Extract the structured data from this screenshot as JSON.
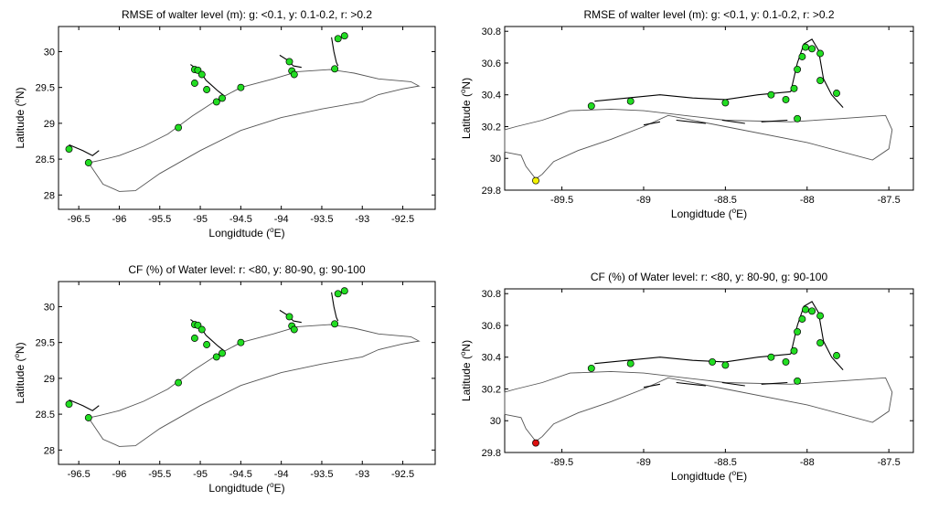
{
  "colors": {
    "g": "#22dd22",
    "y": "#f2f200",
    "r": "#dd1111"
  },
  "chart_data": [
    {
      "type": "scatter",
      "title": "RMSE of walter level (m):  g: <0.1, y: 0.1-0.2, r: >0.2",
      "xlabel_pre": "Longidtude (",
      "xlabel_sup": "o",
      "xlabel_post": "E)",
      "ylabel_pre": "Latitude (",
      "ylabel_sup": "o",
      "ylabel_post": "N)",
      "xlim": [
        -96.75,
        -92.1
      ],
      "ylim": [
        27.8,
        30.35
      ],
      "xticks": [
        -96.5,
        -96,
        -95.5,
        -95,
        -94.5,
        -94,
        -93.5,
        -93,
        -92.5
      ],
      "yticks": [
        28,
        28.5,
        29,
        29.5,
        30
      ],
      "coast": [
        [
          -96.35,
          28.4
        ],
        [
          -96.2,
          28.15
        ],
        [
          -96.0,
          28.05
        ],
        [
          -95.8,
          28.06
        ],
        [
          -95.5,
          28.3
        ],
        [
          -95.0,
          28.62
        ],
        [
          -94.5,
          28.9
        ],
        [
          -94.0,
          29.08
        ],
        [
          -93.5,
          29.2
        ],
        [
          -93.0,
          29.3
        ],
        [
          -92.8,
          29.4
        ],
        [
          -92.5,
          29.48
        ],
        [
          -92.3,
          29.52
        ],
        [
          -92.4,
          29.58
        ],
        [
          -92.8,
          29.62
        ],
        [
          -93.1,
          29.7
        ],
        [
          -93.4,
          29.75
        ],
        [
          -93.8,
          29.72
        ],
        [
          -94.1,
          29.62
        ],
        [
          -94.5,
          29.5
        ],
        [
          -94.8,
          29.32
        ],
        [
          -95.1,
          29.1
        ],
        [
          -95.4,
          28.85
        ],
        [
          -95.7,
          28.68
        ],
        [
          -96.0,
          28.55
        ],
        [
          -96.25,
          28.48
        ],
        [
          -96.38,
          28.45
        ]
      ],
      "points": [
        {
          "lon": -96.62,
          "lat": 28.64,
          "c": "g"
        },
        {
          "lon": -96.38,
          "lat": 28.45,
          "c": "g"
        },
        {
          "lon": -95.27,
          "lat": 28.94,
          "c": "g"
        },
        {
          "lon": -95.07,
          "lat": 29.75,
          "c": "g"
        },
        {
          "lon": -95.03,
          "lat": 29.74,
          "c": "g"
        },
        {
          "lon": -94.98,
          "lat": 29.68,
          "c": "g"
        },
        {
          "lon": -95.07,
          "lat": 29.56,
          "c": "g"
        },
        {
          "lon": -94.92,
          "lat": 29.47,
          "c": "g"
        },
        {
          "lon": -94.8,
          "lat": 29.3,
          "c": "g"
        },
        {
          "lon": -94.73,
          "lat": 29.35,
          "c": "g"
        },
        {
          "lon": -94.5,
          "lat": 29.5,
          "c": "g"
        },
        {
          "lon": -93.9,
          "lat": 29.86,
          "c": "g"
        },
        {
          "lon": -93.87,
          "lat": 29.73,
          "c": "g"
        },
        {
          "lon": -93.84,
          "lat": 29.68,
          "c": "g"
        },
        {
          "lon": -93.34,
          "lat": 29.76,
          "c": "g"
        },
        {
          "lon": -93.3,
          "lat": 30.18,
          "c": "g"
        },
        {
          "lon": -93.22,
          "lat": 30.22,
          "c": "g"
        }
      ]
    },
    {
      "type": "scatter",
      "title": "RMSE of walter level (m):  g: <0.1, y: 0.1-0.2, r: >0.2",
      "xlabel_pre": "Longidtude (",
      "xlabel_sup": "o",
      "xlabel_post": "E)",
      "ylabel_pre": "Latitude (",
      "ylabel_sup": "o",
      "ylabel_post": "N)",
      "xlim": [
        -89.85,
        -87.35
      ],
      "ylim": [
        29.8,
        30.83
      ],
      "xticks": [
        -89.5,
        -89,
        -88.5,
        -88,
        -87.5
      ],
      "yticks": [
        29.8,
        30,
        30.2,
        30.4,
        30.6,
        30.8
      ],
      "coast": [
        [
          -89.85,
          30.04
        ],
        [
          -89.75,
          30.02
        ],
        [
          -89.72,
          29.95
        ],
        [
          -89.66,
          29.87
        ],
        [
          -89.62,
          29.9
        ],
        [
          -89.55,
          29.98
        ],
        [
          -89.4,
          30.05
        ],
        [
          -89.2,
          30.12
        ],
        [
          -89.0,
          30.2
        ],
        [
          -88.85,
          30.27
        ],
        [
          -88.5,
          30.2
        ],
        [
          -88.0,
          30.1
        ],
        [
          -87.6,
          29.99
        ],
        [
          -87.5,
          30.06
        ],
        [
          -87.48,
          30.18
        ],
        [
          -87.52,
          30.27
        ],
        [
          -87.8,
          30.25
        ],
        [
          -88.1,
          30.23
        ],
        [
          -88.5,
          30.24
        ],
        [
          -88.75,
          30.27
        ],
        [
          -89.0,
          30.3
        ],
        [
          -89.2,
          30.31
        ],
        [
          -89.45,
          30.3
        ],
        [
          -89.62,
          30.24
        ],
        [
          -89.78,
          30.2
        ],
        [
          -89.85,
          30.18
        ]
      ],
      "points": [
        {
          "lon": -89.66,
          "lat": 29.86,
          "c": "y"
        },
        {
          "lon": -89.32,
          "lat": 30.33,
          "c": "g"
        },
        {
          "lon": -89.08,
          "lat": 30.36,
          "c": "g"
        },
        {
          "lon": -88.5,
          "lat": 30.35,
          "c": "g"
        },
        {
          "lon": -88.22,
          "lat": 30.4,
          "c": "g"
        },
        {
          "lon": -88.13,
          "lat": 30.37,
          "c": "g"
        },
        {
          "lon": -88.08,
          "lat": 30.44,
          "c": "g"
        },
        {
          "lon": -88.06,
          "lat": 30.56,
          "c": "g"
        },
        {
          "lon": -88.03,
          "lat": 30.64,
          "c": "g"
        },
        {
          "lon": -88.01,
          "lat": 30.7,
          "c": "g"
        },
        {
          "lon": -87.97,
          "lat": 30.69,
          "c": "g"
        },
        {
          "lon": -87.92,
          "lat": 30.66,
          "c": "g"
        },
        {
          "lon": -87.92,
          "lat": 30.49,
          "c": "g"
        },
        {
          "lon": -87.82,
          "lat": 30.41,
          "c": "g"
        },
        {
          "lon": -88.06,
          "lat": 30.25,
          "c": "g"
        }
      ]
    },
    {
      "type": "scatter",
      "title": "CF (%) of Water level: r: <80, y: 80-90, g: 90-100",
      "xlabel_pre": "Longidtude (",
      "xlabel_sup": "o",
      "xlabel_post": "E)",
      "ylabel_pre": "Latitude (",
      "ylabel_sup": "o",
      "ylabel_post": "N)",
      "xlim": [
        -96.75,
        -92.1
      ],
      "ylim": [
        27.8,
        30.35
      ],
      "xticks": [
        -96.5,
        -96,
        -95.5,
        -95,
        -94.5,
        -94,
        -93.5,
        -93,
        -92.5
      ],
      "yticks": [
        28,
        28.5,
        29,
        29.5,
        30
      ],
      "coast": [
        [
          -96.35,
          28.4
        ],
        [
          -96.2,
          28.15
        ],
        [
          -96.0,
          28.05
        ],
        [
          -95.8,
          28.06
        ],
        [
          -95.5,
          28.3
        ],
        [
          -95.0,
          28.62
        ],
        [
          -94.5,
          28.9
        ],
        [
          -94.0,
          29.08
        ],
        [
          -93.5,
          29.2
        ],
        [
          -93.0,
          29.3
        ],
        [
          -92.8,
          29.4
        ],
        [
          -92.5,
          29.48
        ],
        [
          -92.3,
          29.52
        ],
        [
          -92.4,
          29.58
        ],
        [
          -92.8,
          29.62
        ],
        [
          -93.1,
          29.7
        ],
        [
          -93.4,
          29.75
        ],
        [
          -93.8,
          29.72
        ],
        [
          -94.1,
          29.62
        ],
        [
          -94.5,
          29.5
        ],
        [
          -94.8,
          29.32
        ],
        [
          -95.1,
          29.1
        ],
        [
          -95.4,
          28.85
        ],
        [
          -95.7,
          28.68
        ],
        [
          -96.0,
          28.55
        ],
        [
          -96.25,
          28.48
        ],
        [
          -96.38,
          28.45
        ]
      ],
      "points": [
        {
          "lon": -96.62,
          "lat": 28.64,
          "c": "g"
        },
        {
          "lon": -96.38,
          "lat": 28.45,
          "c": "g"
        },
        {
          "lon": -95.27,
          "lat": 28.94,
          "c": "g"
        },
        {
          "lon": -95.07,
          "lat": 29.75,
          "c": "g"
        },
        {
          "lon": -95.03,
          "lat": 29.74,
          "c": "g"
        },
        {
          "lon": -94.98,
          "lat": 29.68,
          "c": "g"
        },
        {
          "lon": -95.07,
          "lat": 29.56,
          "c": "g"
        },
        {
          "lon": -94.92,
          "lat": 29.47,
          "c": "g"
        },
        {
          "lon": -94.8,
          "lat": 29.3,
          "c": "g"
        },
        {
          "lon": -94.73,
          "lat": 29.35,
          "c": "g"
        },
        {
          "lon": -94.5,
          "lat": 29.5,
          "c": "g"
        },
        {
          "lon": -93.9,
          "lat": 29.86,
          "c": "g"
        },
        {
          "lon": -93.87,
          "lat": 29.73,
          "c": "g"
        },
        {
          "lon": -93.84,
          "lat": 29.68,
          "c": "g"
        },
        {
          "lon": -93.34,
          "lat": 29.76,
          "c": "g"
        },
        {
          "lon": -93.3,
          "lat": 30.18,
          "c": "g"
        },
        {
          "lon": -93.22,
          "lat": 30.22,
          "c": "g"
        }
      ]
    },
    {
      "type": "scatter",
      "title": "CF (%) of Water level: r: <80, y: 80-90, g: 90-100",
      "xlabel_pre": "Longidtude (",
      "xlabel_sup": "o",
      "xlabel_post": "E)",
      "ylabel_pre": "Latitude (",
      "ylabel_sup": "o",
      "ylabel_post": "N)",
      "xlim": [
        -89.85,
        -87.35
      ],
      "ylim": [
        29.8,
        30.83
      ],
      "xticks": [
        -89.5,
        -89,
        -88.5,
        -88,
        -87.5
      ],
      "yticks": [
        29.8,
        30,
        30.2,
        30.4,
        30.6,
        30.8
      ],
      "coast": [
        [
          -89.85,
          30.04
        ],
        [
          -89.75,
          30.02
        ],
        [
          -89.72,
          29.95
        ],
        [
          -89.66,
          29.87
        ],
        [
          -89.62,
          29.9
        ],
        [
          -89.55,
          29.98
        ],
        [
          -89.4,
          30.05
        ],
        [
          -89.2,
          30.12
        ],
        [
          -89.0,
          30.2
        ],
        [
          -88.85,
          30.27
        ],
        [
          -88.5,
          30.2
        ],
        [
          -88.0,
          30.1
        ],
        [
          -87.6,
          29.99
        ],
        [
          -87.5,
          30.06
        ],
        [
          -87.48,
          30.18
        ],
        [
          -87.52,
          30.27
        ],
        [
          -87.8,
          30.25
        ],
        [
          -88.1,
          30.23
        ],
        [
          -88.5,
          30.24
        ],
        [
          -88.75,
          30.27
        ],
        [
          -89.0,
          30.3
        ],
        [
          -89.2,
          30.31
        ],
        [
          -89.45,
          30.3
        ],
        [
          -89.62,
          30.24
        ],
        [
          -89.78,
          30.2
        ],
        [
          -89.85,
          30.18
        ]
      ],
      "points": [
        {
          "lon": -89.66,
          "lat": 29.86,
          "c": "r"
        },
        {
          "lon": -89.32,
          "lat": 30.33,
          "c": "g"
        },
        {
          "lon": -89.08,
          "lat": 30.36,
          "c": "g"
        },
        {
          "lon": -88.58,
          "lat": 30.37,
          "c": "g"
        },
        {
          "lon": -88.5,
          "lat": 30.35,
          "c": "g"
        },
        {
          "lon": -88.22,
          "lat": 30.4,
          "c": "g"
        },
        {
          "lon": -88.13,
          "lat": 30.37,
          "c": "g"
        },
        {
          "lon": -88.08,
          "lat": 30.44,
          "c": "g"
        },
        {
          "lon": -88.06,
          "lat": 30.56,
          "c": "g"
        },
        {
          "lon": -88.03,
          "lat": 30.64,
          "c": "g"
        },
        {
          "lon": -88.01,
          "lat": 30.7,
          "c": "g"
        },
        {
          "lon": -87.97,
          "lat": 30.69,
          "c": "g"
        },
        {
          "lon": -87.92,
          "lat": 30.66,
          "c": "g"
        },
        {
          "lon": -87.92,
          "lat": 30.49,
          "c": "g"
        },
        {
          "lon": -87.82,
          "lat": 30.41,
          "c": "g"
        },
        {
          "lon": -88.06,
          "lat": 30.25,
          "c": "g"
        }
      ]
    }
  ]
}
